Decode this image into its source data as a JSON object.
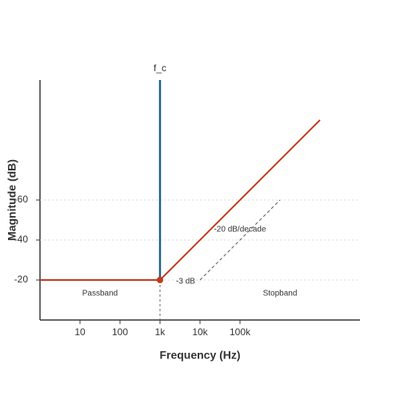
{
  "chart_data": {
    "type": "line",
    "x_label": "Frequency (Hz)",
    "y_label": "Magnitude (dB)",
    "x": [
      1,
      1000,
      10000000
    ],
    "values": [
      -20,
      -20,
      -100
    ],
    "color": "#c0391b",
    "xlim": [
      1,
      100000000
    ],
    "xlog": true,
    "xticks": [
      10,
      100,
      {
        "value": 1000,
        "label": "1k"
      },
      {
        "value": 10000,
        "label": "10k"
      },
      {
        "value": 100000,
        "label": "100k"
      }
    ],
    "ylim": [
      0,
      -120
    ],
    "yticks": [
      -20,
      -40,
      -60
    ],
    "grid": true,
    "cutoff": {
      "label": "f_c",
      "x": 1000,
      "y": -20,
      "color": "#1f5f8b"
    },
    "slope_guide": {
      "x": [
        10000,
        1000000
      ],
      "values": [
        -20,
        -60
      ]
    },
    "annotations": [
      "-20 dB/decade",
      "-3 dB",
      "Passband",
      "Stopband"
    ]
  }
}
